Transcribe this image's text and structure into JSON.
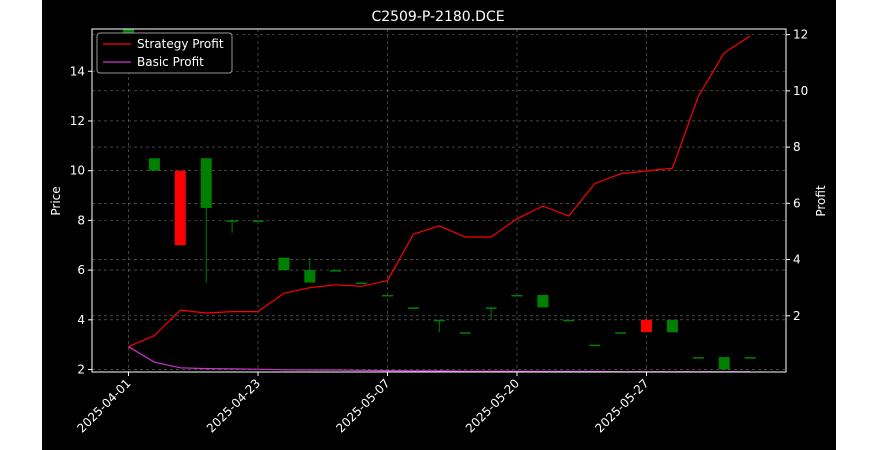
{
  "chart_data": {
    "type": "candlestick-with-line",
    "title": "C2509-P-2180.DCE",
    "ylabel": "Price",
    "y2label": "Profit",
    "ylim": [
      1.9,
      15.7
    ],
    "y2lim": [
      0,
      12.2
    ],
    "yticks": [
      2,
      4,
      6,
      8,
      10,
      12,
      14
    ],
    "y2ticks": [
      2,
      4,
      6,
      8,
      10,
      12
    ],
    "x_tick_labels": [
      "2025-04-01",
      "2025-04-23",
      "2025-05-07",
      "2025-05-20",
      "2025-05-27"
    ],
    "x_tick_index": [
      0,
      5,
      10,
      15,
      20
    ],
    "n_points": 25,
    "grid": true,
    "legend_position": "top-left",
    "colors": {
      "up": "#008000",
      "down": "#ff0000",
      "strategy": "#ff0000",
      "basic": "#cc33cc",
      "background": "#000000"
    },
    "candles": [
      {
        "open": 15.0,
        "high": 15.7,
        "low": 15.0,
        "close": 15.7
      },
      {
        "open": 10.0,
        "high": 10.5,
        "low": 10.0,
        "close": 10.5
      },
      {
        "open": 10.0,
        "high": 10.0,
        "low": 7.0,
        "close": 7.0
      },
      {
        "open": 8.5,
        "high": 10.5,
        "low": 5.5,
        "close": 10.5
      },
      {
        "open": 8.0,
        "high": 8.0,
        "low": 7.5,
        "close": 8.0
      },
      {
        "open": 8.0,
        "high": 8.0,
        "low": 8.0,
        "close": 8.0
      },
      {
        "open": 6.0,
        "high": 6.5,
        "low": 6.0,
        "close": 6.5
      },
      {
        "open": 5.5,
        "high": 6.5,
        "low": 5.5,
        "close": 6.0
      },
      {
        "open": 6.0,
        "high": 6.0,
        "low": 6.0,
        "close": 6.0
      },
      {
        "open": 5.5,
        "high": 5.5,
        "low": 5.5,
        "close": 5.5
      },
      {
        "open": 5.0,
        "high": 5.0,
        "low": 5.0,
        "close": 5.0
      },
      {
        "open": 4.5,
        "high": 4.5,
        "low": 4.5,
        "close": 4.5
      },
      {
        "open": 4.0,
        "high": 4.0,
        "low": 3.5,
        "close": 4.0
      },
      {
        "open": 3.5,
        "high": 3.5,
        "low": 3.5,
        "close": 3.5
      },
      {
        "open": 4.5,
        "high": 4.5,
        "low": 4.0,
        "close": 4.5
      },
      {
        "open": 5.0,
        "high": 5.0,
        "low": 5.0,
        "close": 5.0
      },
      {
        "open": 4.5,
        "high": 5.0,
        "low": 4.5,
        "close": 5.0
      },
      {
        "open": 4.0,
        "high": 4.0,
        "low": 4.0,
        "close": 4.0
      },
      {
        "open": 3.0,
        "high": 3.0,
        "low": 3.0,
        "close": 3.0
      },
      {
        "open": 3.5,
        "high": 3.5,
        "low": 3.5,
        "close": 3.5
      },
      {
        "open": 4.0,
        "high": 4.0,
        "low": 3.5,
        "close": 3.5
      },
      {
        "open": 3.5,
        "high": 4.0,
        "low": 3.5,
        "close": 4.0
      },
      {
        "open": 2.5,
        "high": 2.5,
        "low": 2.5,
        "close": 2.5
      },
      {
        "open": 2.0,
        "high": 2.5,
        "low": 2.0,
        "close": 2.5
      },
      {
        "open": 2.5,
        "high": 2.5,
        "low": 2.5,
        "close": 2.5
      }
    ],
    "series": [
      {
        "name": "Strategy Profit",
        "axis": "right",
        "values": [
          0.9,
          1.3,
          2.2,
          2.1,
          2.15,
          2.15,
          2.8,
          3.0,
          3.1,
          3.05,
          3.25,
          4.9,
          5.2,
          4.8,
          4.8,
          5.45,
          5.9,
          5.55,
          6.7,
          7.05,
          7.15,
          7.25,
          9.8,
          11.35,
          11.95
        ]
      },
      {
        "name": "Basic Profit",
        "axis": "right",
        "values": [
          0.9,
          0.35,
          0.15,
          0.12,
          0.11,
          0.1,
          0.08,
          0.07,
          0.07,
          0.06,
          0.05,
          0.04,
          0.04,
          0.03,
          0.03,
          0.03,
          0.02,
          0.02,
          0.02,
          0.01,
          0.01,
          0.01,
          0.01,
          0.01,
          0.01
        ]
      }
    ]
  }
}
